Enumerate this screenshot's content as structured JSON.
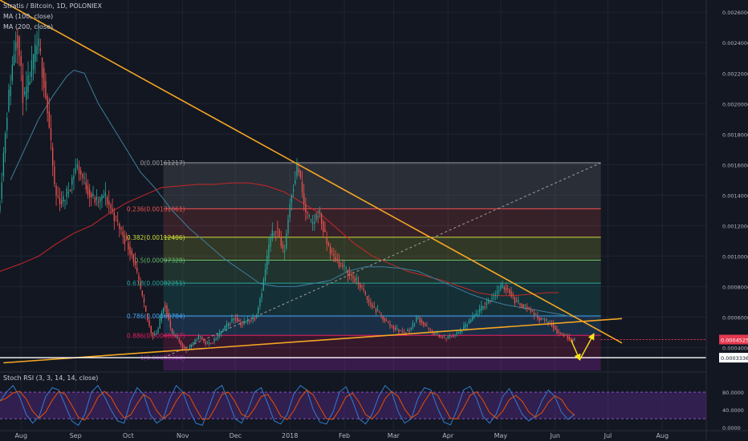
{
  "header": {
    "title": "Stratis / Bitcoin, 1D, POLONIEX",
    "ma100": "MA (100, close)",
    "ma200": "MA (200, close)"
  },
  "oscillator": {
    "title": "Stoch RSI (3, 3, 14, 14, close)"
  },
  "colors": {
    "background": "#131722",
    "grid": "#1f2433",
    "candle_up": "#26a69a",
    "candle_down": "#ef5350",
    "ma100": "#3f7e9c",
    "ma200": "#c62828",
    "trendline": "#f5a623",
    "projection": "#f5e51b",
    "support": "#ffffff",
    "rsi_k": "#2f7dd1",
    "rsi_d": "#e65100",
    "rsi_band": "#6a2ea3",
    "price_tag": "#e53950"
  },
  "chart_data": {
    "type": "candlestick",
    "symbol": "Stratis / Bitcoin",
    "interval": "1D",
    "exchange": "POLONIEX",
    "x_ticks": [
      "Aug",
      "Sep",
      "Oct",
      "Nov",
      "Dec",
      "2018",
      "Feb",
      "Mar",
      "Apr",
      "May",
      "Jun",
      "Jul",
      "Aug"
    ],
    "x_tick_index": [
      0,
      31,
      61,
      92,
      122,
      153,
      184,
      212,
      243,
      273,
      304,
      334,
      365
    ],
    "x_range_index": [
      -12,
      390
    ],
    "y_ticks": [
      "0.00260000",
      "0.00240000",
      "0.00220000",
      "0.00200000",
      "0.00180000",
      "0.00160000",
      "0.00140000",
      "0.00120000",
      "0.00100000",
      "0.00080000",
      "0.00060000",
      "0.00040000"
    ],
    "y_range": [
      0.00025,
      0.00268
    ],
    "current_price": "0.00045256",
    "current_price_value": 0.00045256,
    "support_level": "0.00033368",
    "support_level_value": 0.00033368,
    "price_path": [
      [
        -12,
        0.0013
      ],
      [
        -8,
        0.0019
      ],
      [
        -4,
        0.0023
      ],
      [
        -2,
        0.0025
      ],
      [
        2,
        0.002
      ],
      [
        6,
        0.0022
      ],
      [
        10,
        0.0024
      ],
      [
        13,
        0.0022
      ],
      [
        16,
        0.0019
      ],
      [
        20,
        0.0014
      ],
      [
        24,
        0.00135
      ],
      [
        28,
        0.00145
      ],
      [
        32,
        0.0016
      ],
      [
        36,
        0.0015
      ],
      [
        40,
        0.0014
      ],
      [
        44,
        0.00135
      ],
      [
        48,
        0.0014
      ],
      [
        52,
        0.0013
      ],
      [
        56,
        0.0012
      ],
      [
        60,
        0.0011
      ],
      [
        64,
        0.001
      ],
      [
        68,
        0.0008
      ],
      [
        72,
        0.0006
      ],
      [
        75,
        0.00048
      ],
      [
        78,
        0.0005
      ],
      [
        82,
        0.0007
      ],
      [
        86,
        0.0005
      ],
      [
        90,
        0.00045
      ],
      [
        94,
        0.00038
      ],
      [
        98,
        0.00042
      ],
      [
        102,
        0.00048
      ],
      [
        106,
        0.00042
      ],
      [
        110,
        0.00044
      ],
      [
        114,
        0.0005
      ],
      [
        118,
        0.00055
      ],
      [
        122,
        0.0006
      ],
      [
        126,
        0.00055
      ],
      [
        130,
        0.00058
      ],
      [
        134,
        0.0006
      ],
      [
        138,
        0.0008
      ],
      [
        142,
        0.0011
      ],
      [
        146,
        0.0012
      ],
      [
        150,
        0.001
      ],
      [
        154,
        0.0014
      ],
      [
        158,
        0.0016
      ],
      [
        162,
        0.0013
      ],
      [
        166,
        0.0012
      ],
      [
        170,
        0.0013
      ],
      [
        174,
        0.0011
      ],
      [
        178,
        0.001
      ],
      [
        182,
        0.00095
      ],
      [
        186,
        0.0009
      ],
      [
        190,
        0.00085
      ],
      [
        194,
        0.0008
      ],
      [
        198,
        0.0007
      ],
      [
        202,
        0.00065
      ],
      [
        206,
        0.0006
      ],
      [
        210,
        0.00055
      ],
      [
        214,
        0.00052
      ],
      [
        218,
        0.0005
      ],
      [
        222,
        0.00052
      ],
      [
        226,
        0.0006
      ],
      [
        230,
        0.00055
      ],
      [
        234,
        0.0005
      ],
      [
        238,
        0.00048
      ],
      [
        242,
        0.00046
      ],
      [
        246,
        0.00048
      ],
      [
        250,
        0.0005
      ],
      [
        254,
        0.00055
      ],
      [
        258,
        0.0006
      ],
      [
        262,
        0.00065
      ],
      [
        266,
        0.0007
      ],
      [
        270,
        0.00075
      ],
      [
        274,
        0.0008
      ],
      [
        278,
        0.00078
      ],
      [
        282,
        0.0007
      ],
      [
        286,
        0.00068
      ],
      [
        290,
        0.00065
      ],
      [
        294,
        0.0006
      ],
      [
        298,
        0.00058
      ],
      [
        302,
        0.00056
      ],
      [
        306,
        0.0005
      ],
      [
        310,
        0.00048
      ],
      [
        313,
        0.00046
      ],
      [
        315,
        0.00045
      ]
    ],
    "ma100_path": [
      [
        -6,
        0.0015
      ],
      [
        2,
        0.0017
      ],
      [
        10,
        0.0019
      ],
      [
        18,
        0.00205
      ],
      [
        26,
        0.00218
      ],
      [
        30,
        0.00222
      ],
      [
        36,
        0.0022
      ],
      [
        44,
        0.002
      ],
      [
        52,
        0.00185
      ],
      [
        60,
        0.0017
      ],
      [
        68,
        0.00155
      ],
      [
        76,
        0.00145
      ],
      [
        86,
        0.0013
      ],
      [
        96,
        0.00118
      ],
      [
        106,
        0.00108
      ],
      [
        116,
        0.00098
      ],
      [
        126,
        0.0009
      ],
      [
        136,
        0.00082
      ],
      [
        146,
        0.0008
      ],
      [
        156,
        0.0008
      ],
      [
        166,
        0.00082
      ],
      [
        176,
        0.00084
      ],
      [
        186,
        0.0009
      ],
      [
        196,
        0.00093
      ],
      [
        206,
        0.00093
      ],
      [
        216,
        0.00092
      ],
      [
        226,
        0.0009
      ],
      [
        236,
        0.00085
      ],
      [
        246,
        0.0008
      ],
      [
        256,
        0.00075
      ],
      [
        266,
        0.00071
      ],
      [
        276,
        0.00068
      ],
      [
        286,
        0.00066
      ],
      [
        296,
        0.00064
      ],
      [
        306,
        0.00062
      ],
      [
        315,
        0.0006
      ]
    ],
    "ma200_path": [
      [
        -12,
        0.0009
      ],
      [
        0,
        0.00095
      ],
      [
        10,
        0.001
      ],
      [
        20,
        0.00108
      ],
      [
        30,
        0.00115
      ],
      [
        40,
        0.0012
      ],
      [
        50,
        0.00128
      ],
      [
        60,
        0.00135
      ],
      [
        70,
        0.0014
      ],
      [
        80,
        0.00145
      ],
      [
        90,
        0.00146
      ],
      [
        100,
        0.00147
      ],
      [
        110,
        0.00147
      ],
      [
        120,
        0.00148
      ],
      [
        130,
        0.00148
      ],
      [
        140,
        0.00146
      ],
      [
        150,
        0.00142
      ],
      [
        160,
        0.00135
      ],
      [
        170,
        0.00128
      ],
      [
        180,
        0.00118
      ],
      [
        190,
        0.00108
      ],
      [
        200,
        0.001
      ],
      [
        210,
        0.00095
      ],
      [
        220,
        0.0009
      ],
      [
        230,
        0.00087
      ],
      [
        240,
        0.00084
      ],
      [
        250,
        0.0008
      ],
      [
        260,
        0.00076
      ],
      [
        270,
        0.00074
      ],
      [
        280,
        0.00074
      ],
      [
        290,
        0.00075
      ],
      [
        300,
        0.00076
      ],
      [
        306,
        0.00076
      ]
    ],
    "fibonacci": {
      "x_range_index": [
        81,
        330
      ],
      "levels": [
        {
          "ratio": 0,
          "label": "0(0.00161217)",
          "price": 0.00161217,
          "color": "#9e9e9e"
        },
        {
          "ratio": 0.236,
          "label": "0.236(0.00131061)",
          "price": 0.00131061,
          "color": "#ef5350"
        },
        {
          "ratio": 0.382,
          "label": "0.382(0.00112406)",
          "price": 0.00112406,
          "color": "#cddc39"
        },
        {
          "ratio": 0.5,
          "label": "0.5(0.00097328)",
          "price": 0.00097328,
          "color": "#66bb6a"
        },
        {
          "ratio": 0.618,
          "label": "0.618(0.00082251)",
          "price": 0.00082251,
          "color": "#26a69a"
        },
        {
          "ratio": 0.786,
          "label": "0.786(0.00060784)",
          "price": 0.00060784,
          "color": "#42a5f5"
        },
        {
          "ratio": 0.886,
          "label": "0.886(0.00048007)",
          "price": 0.00048007,
          "color": "#e91e63"
        },
        {
          "ratio": 1,
          "label": "1(0.00033368)",
          "price": 0.00033368,
          "color": "#8e24aa"
        }
      ]
    },
    "trendlines": [
      {
        "name": "descending",
        "from": [
          -12,
          0.00268
        ],
        "to": [
          342,
          0.00043
        ]
      },
      {
        "name": "ascending",
        "from": [
          -10,
          0.0003
        ],
        "to": [
          342,
          0.00059
        ]
      }
    ],
    "projection": [
      [
        313,
        0.00045
      ],
      [
        318,
        0.00032
      ],
      [
        326,
        0.00049
      ]
    ],
    "stoch_rsi": {
      "y_ticks": [
        "80.0000",
        "40.0000",
        "0.0000"
      ],
      "y_values": [
        80,
        40,
        0
      ],
      "y_range": [
        -5,
        100
      ],
      "band": [
        20,
        80
      ],
      "k_values": [
        60,
        80,
        95,
        70,
        30,
        10,
        25,
        70,
        90,
        85,
        50,
        15,
        5,
        30,
        80,
        95,
        70,
        40,
        15,
        10,
        60,
        90,
        75,
        30,
        10,
        20,
        65,
        95,
        80,
        40,
        10,
        5,
        45,
        85,
        95,
        60,
        20,
        10,
        40,
        80,
        90,
        55,
        15,
        8,
        30,
        75,
        95,
        85,
        40,
        12,
        8,
        35,
        80,
        92,
        60,
        20,
        8,
        30,
        70,
        95,
        80,
        35,
        10,
        20,
        65,
        90,
        85,
        45,
        12,
        6,
        40,
        85,
        93,
        65,
        25,
        10,
        30,
        70,
        88,
        60,
        30,
        15,
        25,
        60,
        85,
        70,
        35,
        18,
        30
      ]
    }
  }
}
